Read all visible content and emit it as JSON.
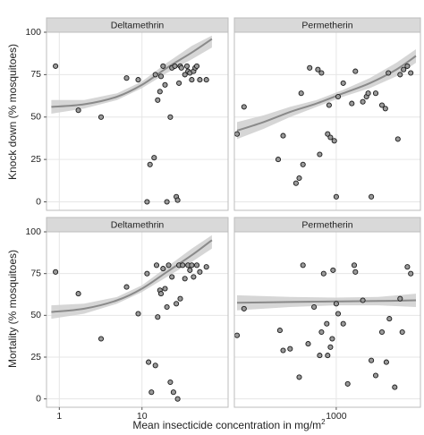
{
  "colors": {
    "panel_background": "#ffffff",
    "panel_border": "#bdbdbd",
    "strip_background": "#d9d9d9",
    "gridline": "#e6e6e6",
    "point_fill": "#9a9a9a",
    "point_stroke": "#1a1a1a",
    "fit_line": "#8a8a8a",
    "ci_band": "#cfcfcf"
  },
  "x_title": {
    "main": "Mean insecticide concentration in mg/m",
    "sup": "2"
  },
  "row_titles": [
    "Knock down (% mosquitoes)",
    "Mortality (% mosquitoes)"
  ],
  "column_titles": [
    "Deltamethrin",
    "Permetherin"
  ],
  "chart_data": [
    {
      "type": "scatter",
      "row": 0,
      "col": 0,
      "title": "Deltamethrin",
      "ylabel": "Knock down (% mosquitoes)",
      "xlabel": "Mean insecticide concentration in mg/m²",
      "xscale": "log",
      "xlim": [
        0.7,
        110
      ],
      "ylim": [
        -5,
        100
      ],
      "xticks": [
        {
          "v": 1,
          "label": "1"
        },
        {
          "v": 10,
          "label": "10"
        }
      ],
      "yticks": [
        0,
        25,
        50,
        75,
        100
      ],
      "grid": true,
      "points": [
        [
          0.9,
          80
        ],
        [
          1.7,
          54
        ],
        [
          3.2,
          50
        ],
        [
          6.5,
          73
        ],
        [
          9.0,
          72
        ],
        [
          11.5,
          0
        ],
        [
          12.5,
          22
        ],
        [
          14,
          26
        ],
        [
          14.5,
          75
        ],
        [
          15.5,
          60
        ],
        [
          16.5,
          65
        ],
        [
          17,
          74
        ],
        [
          18,
          80
        ],
        [
          19,
          69
        ],
        [
          20,
          0
        ],
        [
          22,
          50
        ],
        [
          23,
          79
        ],
        [
          25,
          80
        ],
        [
          26,
          3
        ],
        [
          27,
          1
        ],
        [
          28,
          70
        ],
        [
          29,
          80
        ],
        [
          30,
          79
        ],
        [
          33,
          75
        ],
        [
          35,
          80
        ],
        [
          36,
          77
        ],
        [
          38,
          76
        ],
        [
          40,
          72
        ],
        [
          42,
          77
        ],
        [
          44,
          79
        ],
        [
          46,
          80
        ],
        [
          50,
          72
        ],
        [
          60,
          72
        ]
      ],
      "fit": {
        "x": [
          0.8,
          2,
          5,
          10,
          20,
          40,
          70
        ],
        "y": [
          56,
          57.5,
          62,
          69,
          79,
          88,
          96
        ]
      },
      "ci": {
        "x": [
          0.8,
          2,
          5,
          10,
          20,
          40,
          70
        ],
        "lower": [
          52,
          55,
          60,
          67,
          76,
          84,
          91
        ],
        "upper": [
          60,
          60,
          64,
          71,
          82,
          92,
          98
        ]
      }
    },
    {
      "type": "scatter",
      "row": 0,
      "col": 1,
      "title": "Permetherin",
      "ylabel": "Knock down (% mosquitoes)",
      "xlabel": "Mean insecticide concentration in mg/m²",
      "xscale": "log",
      "xlim": [
        70,
        9000
      ],
      "ylim": [
        -5,
        100
      ],
      "xticks": [
        {
          "v": 1000,
          "label": "1000"
        }
      ],
      "yticks": [
        0,
        25,
        50,
        75,
        100
      ],
      "grid": true,
      "points": [
        [
          75,
          40
        ],
        [
          90,
          56
        ],
        [
          220,
          25
        ],
        [
          250,
          39
        ],
        [
          350,
          11
        ],
        [
          380,
          14
        ],
        [
          400,
          64
        ],
        [
          420,
          22
        ],
        [
          500,
          79
        ],
        [
          620,
          78
        ],
        [
          650,
          28
        ],
        [
          680,
          76
        ],
        [
          800,
          40
        ],
        [
          830,
          57
        ],
        [
          860,
          38
        ],
        [
          950,
          36
        ],
        [
          1000,
          3
        ],
        [
          1050,
          62
        ],
        [
          1200,
          70
        ],
        [
          1500,
          58
        ],
        [
          1650,
          77
        ],
        [
          2000,
          59
        ],
        [
          2200,
          62
        ],
        [
          2300,
          64
        ],
        [
          2500,
          3
        ],
        [
          2800,
          64
        ],
        [
          3300,
          57
        ],
        [
          3600,
          55
        ],
        [
          3900,
          76
        ],
        [
          5000,
          37
        ],
        [
          5300,
          75
        ],
        [
          5800,
          78
        ],
        [
          6400,
          80
        ],
        [
          7000,
          76
        ]
      ],
      "fit": {
        "x": [
          75,
          150,
          300,
          600,
          1200,
          2400,
          4800,
          8000
        ],
        "y": [
          42,
          47,
          53,
          58,
          64,
          70,
          78,
          86
        ]
      },
      "ci": {
        "x": [
          75,
          150,
          300,
          600,
          1200,
          2400,
          4800,
          8000
        ],
        "lower": [
          37,
          43,
          50,
          56,
          62,
          67,
          74,
          82
        ],
        "upper": [
          47,
          51,
          56,
          60,
          66,
          73,
          82,
          90
        ]
      }
    },
    {
      "type": "scatter",
      "row": 1,
      "col": 0,
      "title": "Deltamethrin",
      "ylabel": "Mortality (% mosquitoes)",
      "xlabel": "Mean insecticide concentration in mg/m²",
      "xscale": "log",
      "xlim": [
        0.7,
        110
      ],
      "ylim": [
        -5,
        100
      ],
      "xticks": [
        {
          "v": 1,
          "label": "1"
        },
        {
          "v": 10,
          "label": "10"
        }
      ],
      "yticks": [
        0,
        25,
        50,
        75,
        100
      ],
      "grid": true,
      "points": [
        [
          0.9,
          76
        ],
        [
          1.7,
          63
        ],
        [
          3.2,
          36
        ],
        [
          6.5,
          67
        ],
        [
          9.0,
          51
        ],
        [
          11.5,
          75
        ],
        [
          12,
          22
        ],
        [
          13,
          4
        ],
        [
          14.5,
          20
        ],
        [
          15,
          80
        ],
        [
          15.5,
          49
        ],
        [
          16.5,
          65
        ],
        [
          17,
          63
        ],
        [
          18,
          78
        ],
        [
          19,
          66
        ],
        [
          20,
          55
        ],
        [
          21,
          80
        ],
        [
          22,
          10
        ],
        [
          23,
          73
        ],
        [
          24,
          4
        ],
        [
          26,
          57
        ],
        [
          27,
          0
        ],
        [
          28,
          80
        ],
        [
          29,
          60
        ],
        [
          31,
          80
        ],
        [
          33,
          72
        ],
        [
          36,
          80
        ],
        [
          38,
          77
        ],
        [
          40,
          80
        ],
        [
          42,
          73
        ],
        [
          46,
          80
        ],
        [
          50,
          76
        ],
        [
          60,
          79
        ]
      ],
      "fit": {
        "x": [
          0.8,
          2,
          5,
          10,
          20,
          40,
          70
        ],
        "y": [
          52,
          54,
          59,
          66,
          76,
          86,
          95
        ]
      },
      "ci": {
        "x": [
          0.8,
          2,
          5,
          10,
          20,
          40,
          70
        ],
        "lower": [
          48,
          51,
          57,
          64,
          73,
          82,
          90
        ],
        "upper": [
          56,
          57,
          61,
          68,
          79,
          90,
          98
        ]
      }
    },
    {
      "type": "scatter",
      "row": 1,
      "col": 1,
      "title": "Permetherin",
      "ylabel": "Mortality (% mosquitoes)",
      "xlabel": "Mean insecticide concentration in mg/m²",
      "xscale": "log",
      "xlim": [
        70,
        9000
      ],
      "ylim": [
        -5,
        100
      ],
      "xticks": [
        {
          "v": 1000,
          "label": "1000"
        }
      ],
      "yticks": [
        0,
        25,
        50,
        75,
        100
      ],
      "grid": true,
      "points": [
        [
          75,
          38
        ],
        [
          90,
          54
        ],
        [
          230,
          41
        ],
        [
          250,
          29
        ],
        [
          300,
          30
        ],
        [
          380,
          13
        ],
        [
          420,
          80
        ],
        [
          480,
          33
        ],
        [
          560,
          55
        ],
        [
          650,
          26
        ],
        [
          680,
          40
        ],
        [
          720,
          75
        ],
        [
          780,
          45
        ],
        [
          800,
          26
        ],
        [
          860,
          31
        ],
        [
          900,
          36
        ],
        [
          920,
          77
        ],
        [
          1000,
          57
        ],
        [
          1050,
          51
        ],
        [
          1200,
          45
        ],
        [
          1350,
          9
        ],
        [
          1600,
          80
        ],
        [
          1650,
          76
        ],
        [
          2000,
          59
        ],
        [
          2500,
          23
        ],
        [
          2800,
          14
        ],
        [
          3300,
          40
        ],
        [
          3700,
          22
        ],
        [
          4000,
          48
        ],
        [
          4600,
          7
        ],
        [
          5300,
          60
        ],
        [
          5600,
          40
        ],
        [
          6400,
          79
        ],
        [
          7000,
          75
        ]
      ],
      "fit": {
        "x": [
          75,
          300,
          1000,
          3000,
          8000
        ],
        "y": [
          57.5,
          58,
          58.3,
          58.6,
          59
        ]
      },
      "ci": {
        "x": [
          75,
          300,
          1000,
          3000,
          8000
        ],
        "lower": [
          53,
          55,
          56,
          56,
          55
        ],
        "upper": [
          62,
          61,
          60.6,
          61,
          63
        ]
      }
    }
  ]
}
